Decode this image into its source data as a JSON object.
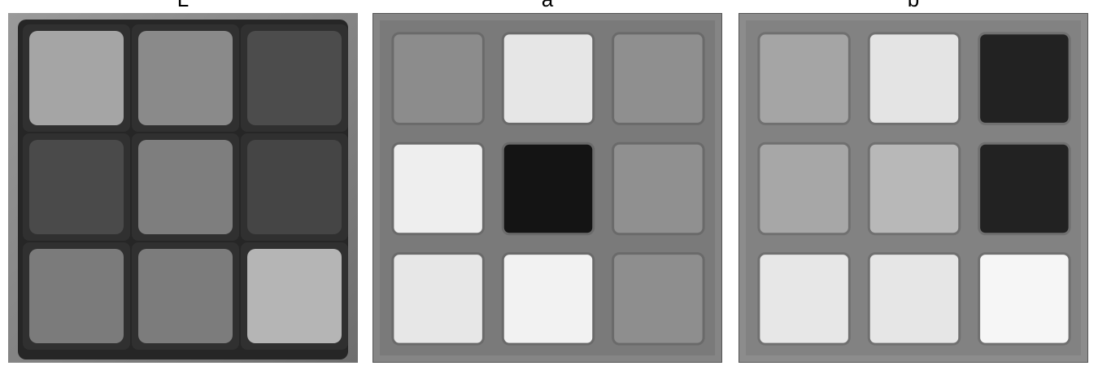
{
  "panels": [
    {
      "label": "L",
      "stickers": [
        "#a5a5a5",
        "#8a8a8a",
        "#4c4c4c",
        "#4a4a4a",
        "#7e7e7e",
        "#454545",
        "#7b7b7b",
        "#7c7c7c",
        "#b5b5b5"
      ]
    },
    {
      "label": "a",
      "stickers": [
        "#8c8c8c",
        "#e6e6e6",
        "#8f8f8f",
        "#eeeeee",
        "#141414",
        "#909090",
        "#e7e7e7",
        "#f2f2f2",
        "#8e8e8e"
      ]
    },
    {
      "label": "b",
      "stickers": [
        "#a5a5a5",
        "#e4e4e4",
        "#222222",
        "#a7a7a7",
        "#b8b8b8",
        "#222222",
        "#e7e7e7",
        "#e6e6e6",
        "#f6f6f6"
      ]
    }
  ]
}
